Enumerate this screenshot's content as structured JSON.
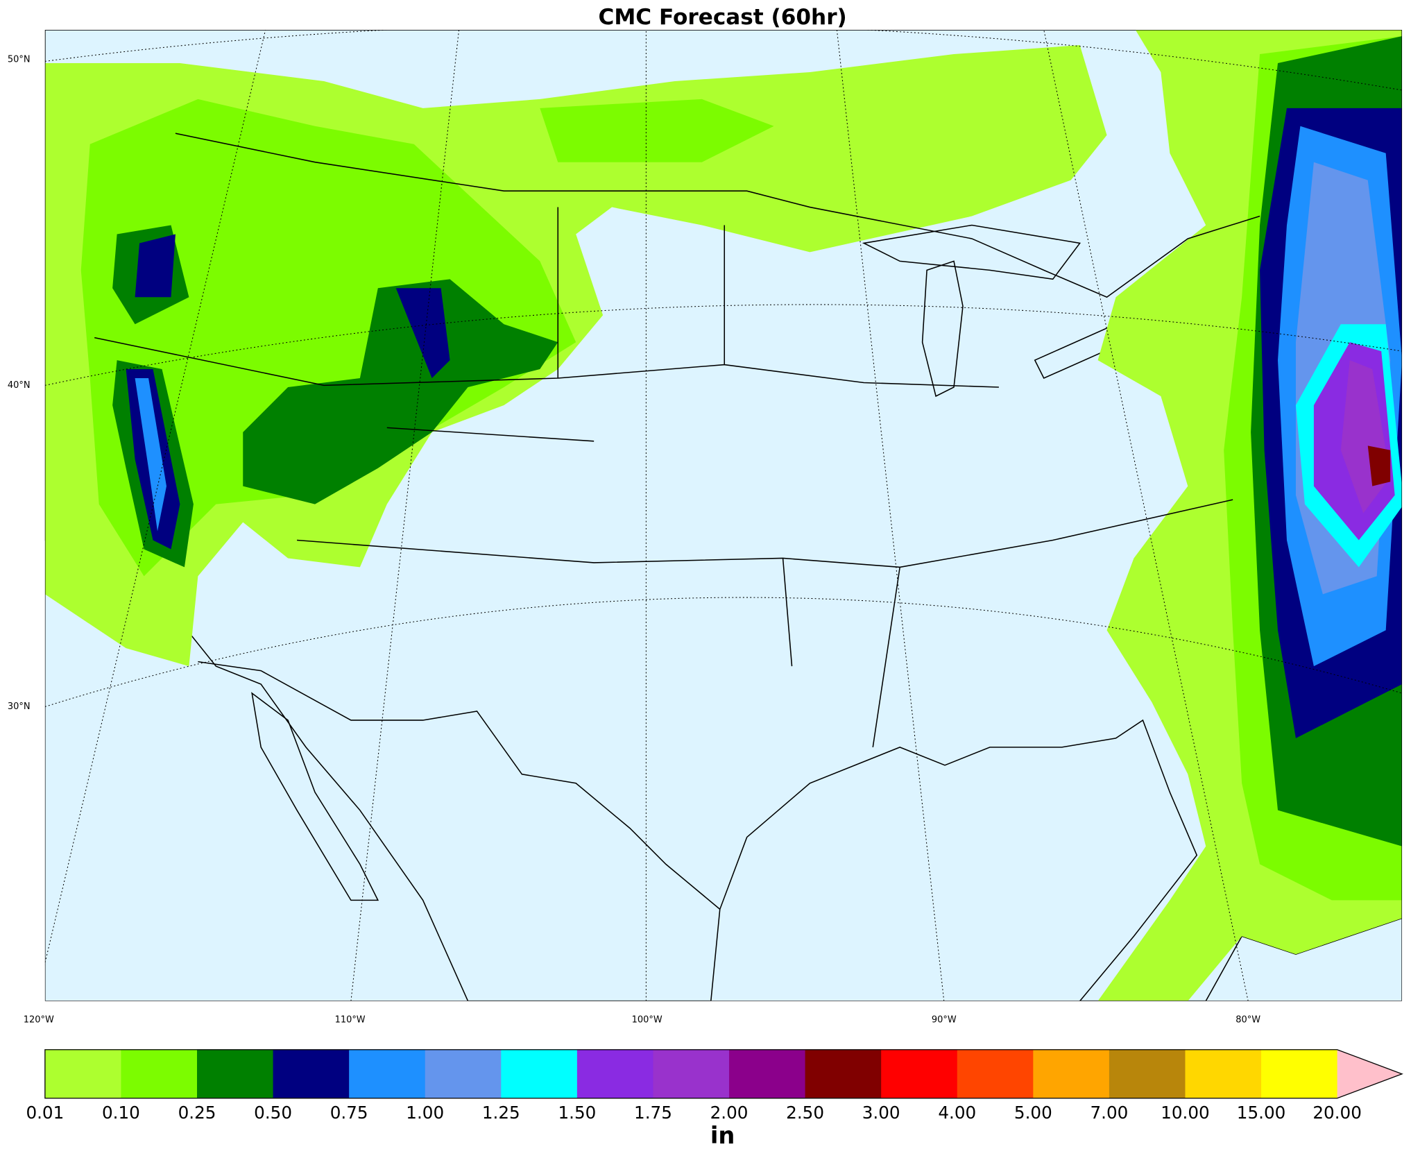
{
  "header": {
    "title": "CMC Forecast (60hr)"
  },
  "map": {
    "lat_labels": [
      "50°N",
      "40°N",
      "30°N"
    ],
    "lon_labels": [
      "120°W",
      "110°W",
      "100°W",
      "90°W",
      "80°W"
    ]
  },
  "colorbar": {
    "labels": [
      "0.01",
      "0.10",
      "0.25",
      "0.50",
      "0.75",
      "1.00",
      "1.25",
      "1.50",
      "1.75",
      "2.00",
      "2.50",
      "3.00",
      "4.00",
      "5.00",
      "7.00",
      "10.00",
      "15.00",
      "20.00"
    ],
    "colors": [
      "#adff2f",
      "#7cfc00",
      "#008000",
      "#000080",
      "#1e90ff",
      "#6495ed",
      "#00ffff",
      "#8a2be2",
      "#9932cc",
      "#8b008b",
      "#800000",
      "#ff0000",
      "#ff4500",
      "#ffa500",
      "#b8860b",
      "#ffd700",
      "#ffff00"
    ],
    "extend_color": "#ffc0cb",
    "unit": "in"
  }
}
